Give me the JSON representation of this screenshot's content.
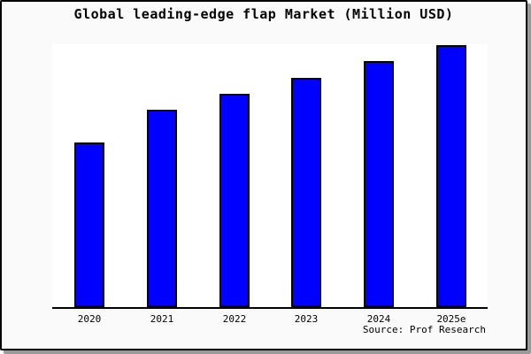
{
  "window": {
    "background": "#fafafa",
    "frame_color": "#000000",
    "shadow_color": "#9a9a9a",
    "plot_background": "#ffffff"
  },
  "chart_data": {
    "type": "bar",
    "title": "Global leading-edge flap Market (Million USD)",
    "categories": [
      "2020",
      "2021",
      "2022",
      "2023",
      "2024",
      "2025e"
    ],
    "values": [
      62.8,
      75.2,
      81.5,
      87.6,
      93.9,
      100
    ],
    "value_note": "y-axis unlabeled; values are relative index with 2025e = 100",
    "xlabel": "",
    "ylabel": "",
    "ylim": [
      0,
      100
    ],
    "grid": false,
    "legend": false,
    "bar_fill": "#0000ff",
    "bar_border": "#000000",
    "axis_color": "#000000",
    "source": "Source: Prof Research"
  }
}
